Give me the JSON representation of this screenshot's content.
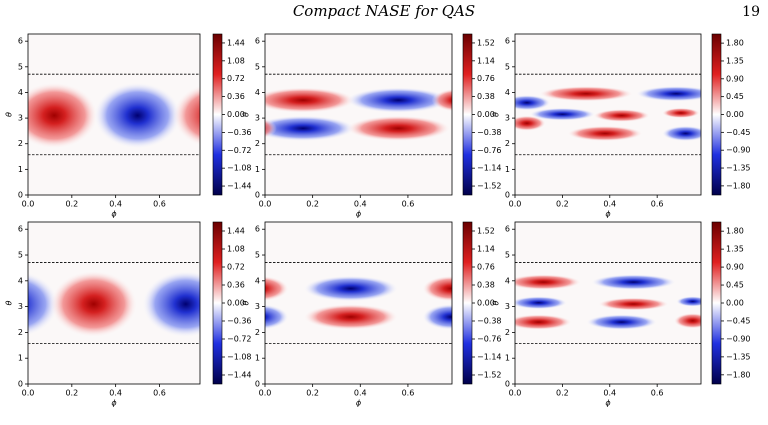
{
  "header": {
    "title": "Compact NASE for QAS",
    "page": "19"
  },
  "chart_data": [
    {
      "type": "heatmap",
      "xlabel": "ϕ",
      "ylabel": "θ",
      "xlim": [
        0,
        0.785
      ],
      "ylim": [
        0,
        6.28
      ],
      "xticks": [
        {
          "value": 0,
          "label": "0.0"
        },
        0.2,
        0.4,
        0.6
      ],
      "yticks": [
        0,
        1,
        2,
        3,
        4,
        5,
        6
      ],
      "hlines": [
        1.5708,
        4.7124
      ],
      "clim": [
        -1.62,
        1.62
      ],
      "cticks": [
        1.44,
        1.08,
        0.72,
        0.36,
        {
          "value": 0,
          "label": "0.00"
        },
        {
          "value": -0.36,
          "label": "−0.36"
        },
        {
          "value": -0.72,
          "label": "−0.72"
        },
        {
          "value": -1.08,
          "label": "−1.08"
        },
        {
          "value": -1.44,
          "label": "−1.44"
        }
      ]
    },
    {
      "type": "heatmap",
      "xlabel": "ϕ",
      "ylabel": "θ",
      "xlim": [
        0,
        0.785
      ],
      "ylim": [
        0,
        6.28
      ],
      "xticks": [
        {
          "value": 0,
          "label": "0.0"
        },
        0.2,
        0.4,
        0.6
      ],
      "yticks": [
        0,
        1,
        2,
        3,
        4,
        5,
        6
      ],
      "hlines": [
        1.5708,
        4.7124
      ],
      "clim": [
        -1.71,
        1.71
      ],
      "cticks": [
        1.52,
        1.14,
        0.76,
        0.38,
        {
          "value": 0,
          "label": "0.00"
        },
        {
          "value": -0.38,
          "label": "−0.38"
        },
        {
          "value": -0.76,
          "label": "−0.76"
        },
        {
          "value": -1.14,
          "label": "−1.14"
        },
        {
          "value": -1.52,
          "label": "−1.52"
        }
      ]
    },
    {
      "type": "heatmap",
      "xlabel": "ϕ",
      "ylabel": "θ",
      "xlim": [
        0,
        0.785
      ],
      "ylim": [
        0,
        6.28
      ],
      "xticks": [
        {
          "value": 0,
          "label": "0.0"
        },
        0.2,
        0.4,
        0.6
      ],
      "yticks": [
        0,
        1,
        2,
        3,
        4,
        5,
        6
      ],
      "hlines": [
        1.5708,
        4.7124
      ],
      "clim": [
        -2.03,
        2.03
      ],
      "cticks": [
        {
          "value": 1.8,
          "label": "1.80"
        },
        1.35,
        {
          "value": 0.9,
          "label": "0.90"
        },
        0.45,
        {
          "value": 0,
          "label": "0.00"
        },
        {
          "value": -0.45,
          "label": "−0.45"
        },
        {
          "value": -0.9,
          "label": "−0.90"
        },
        {
          "value": -1.35,
          "label": "−1.35"
        },
        {
          "value": -1.8,
          "label": "−1.80"
        }
      ]
    },
    {
      "type": "heatmap",
      "xlabel": "ϕ",
      "ylabel": "θ",
      "xlim": [
        0,
        0.785
      ],
      "ylim": [
        0,
        6.28
      ],
      "xticks": [
        {
          "value": 0,
          "label": "0.0"
        },
        0.2,
        0.4,
        0.6
      ],
      "yticks": [
        0,
        1,
        2,
        3,
        4,
        5,
        6
      ],
      "hlines": [
        1.5708,
        4.7124
      ],
      "clim": [
        -1.62,
        1.62
      ],
      "cticks": [
        1.44,
        1.08,
        0.72,
        0.36,
        {
          "value": 0,
          "label": "0.00"
        },
        {
          "value": -0.36,
          "label": "−0.36"
        },
        {
          "value": -0.72,
          "label": "−0.72"
        },
        {
          "value": -1.08,
          "label": "−1.08"
        },
        {
          "value": -1.44,
          "label": "−1.44"
        }
      ]
    },
    {
      "type": "heatmap",
      "xlabel": "ϕ",
      "ylabel": "θ",
      "xlim": [
        0,
        0.785
      ],
      "ylim": [
        0,
        6.28
      ],
      "xticks": [
        {
          "value": 0,
          "label": "0.0"
        },
        0.2,
        0.4,
        0.6
      ],
      "yticks": [
        0,
        1,
        2,
        3,
        4,
        5,
        6
      ],
      "hlines": [
        1.5708,
        4.7124
      ],
      "clim": [
        -1.71,
        1.71
      ],
      "cticks": [
        1.52,
        1.14,
        0.76,
        0.38,
        {
          "value": 0,
          "label": "0.00"
        },
        {
          "value": -0.38,
          "label": "−0.38"
        },
        {
          "value": -0.76,
          "label": "−0.76"
        },
        {
          "value": -1.14,
          "label": "−1.14"
        },
        {
          "value": -1.52,
          "label": "−1.52"
        }
      ]
    },
    {
      "type": "heatmap",
      "xlabel": "ϕ",
      "ylabel": "θ",
      "xlim": [
        0,
        0.785
      ],
      "ylim": [
        0,
        6.28
      ],
      "xticks": [
        {
          "value": 0,
          "label": "0.0"
        },
        0.2,
        0.4,
        0.6
      ],
      "yticks": [
        0,
        1,
        2,
        3,
        4,
        5,
        6
      ],
      "hlines": [
        1.5708,
        4.7124
      ],
      "clim": [
        -2.03,
        2.03
      ],
      "cticks": [
        {
          "value": 1.8,
          "label": "1.80"
        },
        1.35,
        {
          "value": 0.9,
          "label": "0.90"
        },
        0.45,
        {
          "value": 0,
          "label": "0.00"
        },
        {
          "value": -0.45,
          "label": "−0.45"
        },
        {
          "value": -0.9,
          "label": "−0.90"
        },
        {
          "value": -1.35,
          "label": "−1.35"
        },
        {
          "value": -1.8,
          "label": "−1.80"
        }
      ]
    }
  ]
}
